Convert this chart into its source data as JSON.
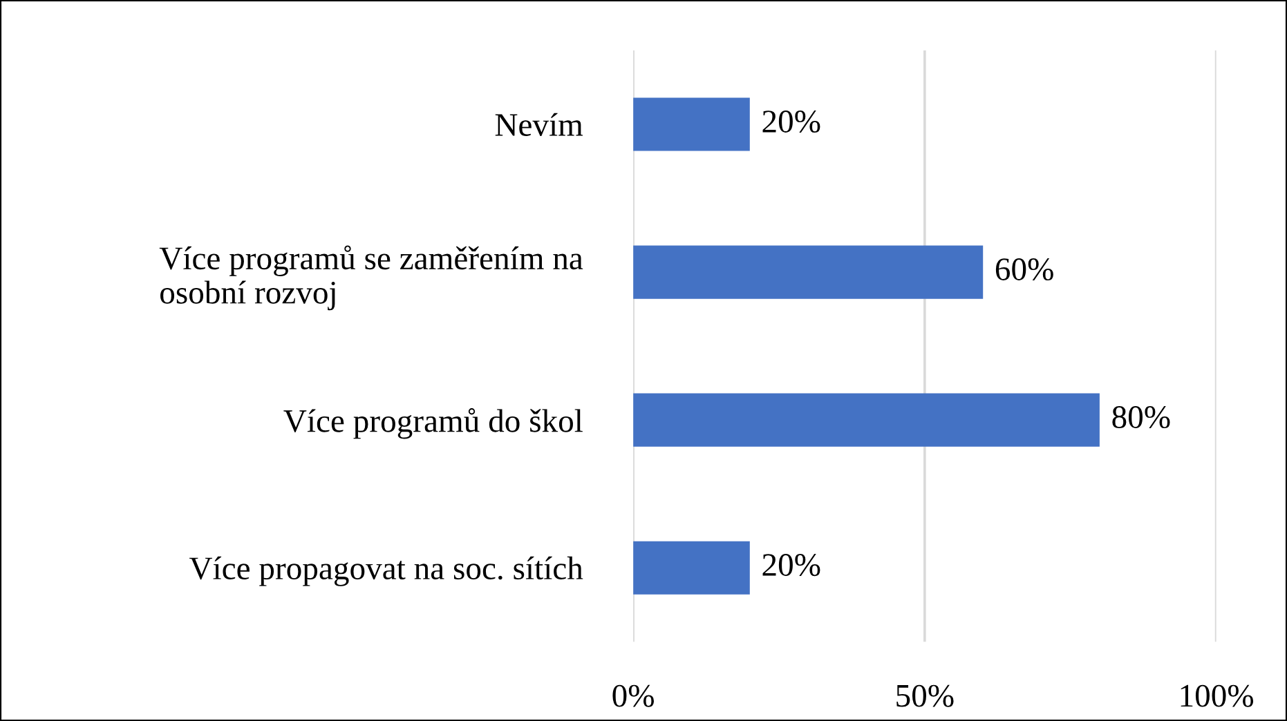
{
  "chart_data": {
    "type": "bar",
    "orientation": "horizontal",
    "categories": [
      "Nevím",
      "Více programů se zaměřením na\nosobní rozvoj",
      "Více programů do škol",
      "Více propagovat na soc. sítích"
    ],
    "values": [
      20,
      60,
      80,
      20
    ],
    "color": "#4472c4",
    "value_labels": [
      "20%",
      "60%",
      "80%",
      "20%"
    ],
    "xlim": [
      0,
      100
    ],
    "xticks": [
      {
        "value": 0,
        "label": "0%"
      },
      {
        "value": 50,
        "label": "50%"
      },
      {
        "value": 100,
        "label": "100%"
      }
    ],
    "grid": "x",
    "legend": false
  }
}
